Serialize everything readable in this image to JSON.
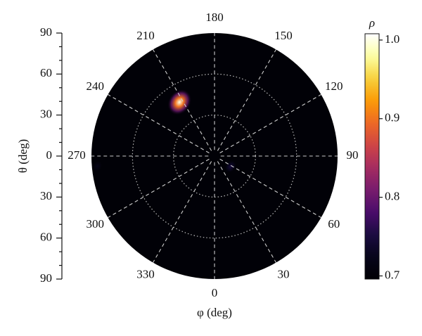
{
  "chart_data": {
    "type": "polar-heatmap",
    "angular_label": "φ (deg)",
    "radial_label": "θ (deg)",
    "colorbar_label": "ρ",
    "angular_ticks": [
      0,
      30,
      60,
      90,
      120,
      150,
      180,
      210,
      240,
      270,
      300,
      330
    ],
    "rlim": [
      0,
      90
    ],
    "rticks": [
      30,
      60
    ],
    "ylim": [
      -90,
      90
    ],
    "yticks": [
      90,
      60,
      30,
      0,
      {
        "value": -30,
        "label": "30"
      },
      {
        "value": -60,
        "label": "60"
      },
      {
        "value": -90,
        "label": "90"
      }
    ],
    "clim": [
      0.696,
      1.008
    ],
    "cticks": [
      {
        "value": 1,
        "label": "1.0"
      },
      0.9,
      0.8,
      0.7
    ],
    "colormap": [
      "#000004",
      "#07051a",
      "#1b0c41",
      "#4a0c6b",
      "#781c6d",
      "#a52c60",
      "#cf4446",
      "#ed6925",
      "#fb9b06",
      "#f7d13d",
      "#fcffa4",
      "#ffffff"
    ],
    "background_value": 0.7,
    "points": [
      {
        "phi": 213,
        "theta": 47,
        "value": 1.0
      },
      {
        "phi": 57,
        "theta": 14,
        "value": 0.75
      },
      {
        "phi": 275,
        "theta": 86,
        "value": 0.72
      }
    ]
  }
}
